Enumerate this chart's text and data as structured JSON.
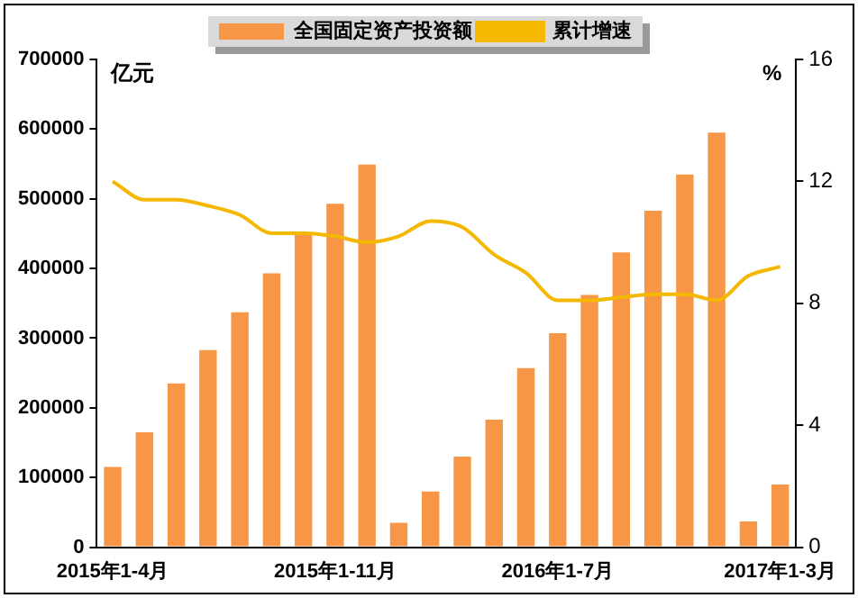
{
  "chart_data": {
    "type": "bar",
    "ylabel": "亿元",
    "y2label": "%",
    "categories": [
      "2015年1-4月",
      null,
      null,
      null,
      null,
      null,
      null,
      "2015年1-11月",
      null,
      null,
      null,
      null,
      null,
      null,
      "2016年1-7月",
      null,
      null,
      null,
      null,
      null,
      null,
      "2017年1-3月"
    ],
    "series": [
      {
        "name": "全国固定资产投资额",
        "color": "#f79646",
        "values": [
          115000,
          165000,
          235000,
          283000,
          337000,
          393000,
          448000,
          493000,
          549000,
          35000,
          80000,
          130000,
          183000,
          257000,
          307000,
          362000,
          423000,
          483000,
          535000,
          595000,
          37000,
          90000
        ]
      },
      {
        "name": "累计增速",
        "type": "line",
        "axis": "y2",
        "color": "#f5b800",
        "values": [
          12.0,
          11.4,
          11.4,
          11.2,
          10.9,
          10.3,
          10.3,
          10.2,
          10.0,
          10.2,
          10.7,
          10.5,
          9.6,
          9.0,
          8.1,
          8.1,
          8.2,
          8.3,
          8.3,
          8.1,
          8.9,
          9.2
        ]
      }
    ],
    "ylim": [
      0,
      700000
    ],
    "yticks": [
      0,
      100000,
      200000,
      300000,
      400000,
      500000,
      600000,
      700000
    ],
    "y2lim": [
      0,
      16
    ],
    "y2ticks": [
      0,
      4,
      8,
      12,
      16
    ],
    "grid": false,
    "legend": "top",
    "marker": "none",
    "line_style": "solid"
  }
}
